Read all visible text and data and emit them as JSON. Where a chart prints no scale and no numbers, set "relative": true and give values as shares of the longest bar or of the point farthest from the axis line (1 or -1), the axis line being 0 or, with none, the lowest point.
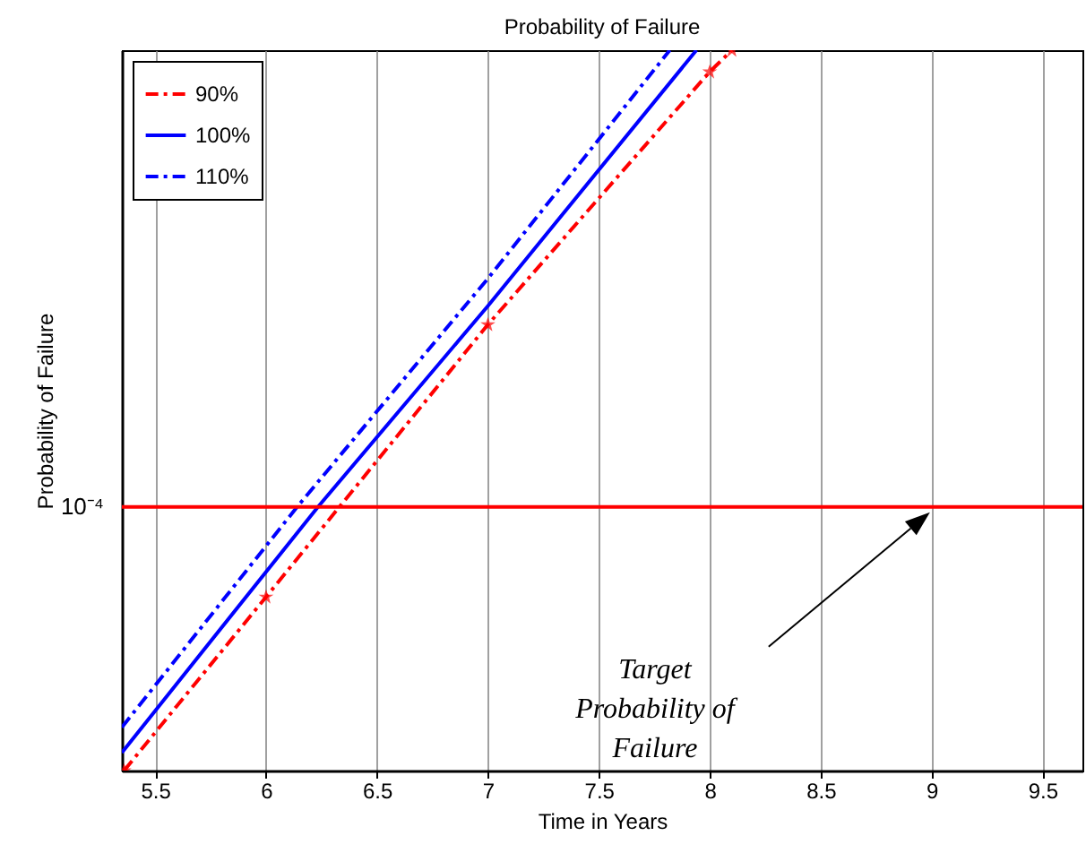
{
  "chart_data": {
    "type": "line",
    "title": "Probability of Failure",
    "xlabel": "Time in Years",
    "ylabel": "Probability of Failure",
    "relative": true,
    "grid": "x",
    "legend": "top left",
    "xlim": [
      5.35,
      9.68
    ],
    "xticks": [
      5.5,
      6,
      6.5,
      7,
      7.5,
      8,
      8.5,
      9,
      9.5
    ],
    "series": [
      {
        "name": "90%",
        "color": "#ff0000",
        "line_style": "dashdot",
        "marker": "star",
        "x": [
          5.36,
          6,
          7,
          8,
          8.1
        ],
        "values": [
          0,
          0.241,
          0.619,
          0.97,
          1
        ]
      },
      {
        "name": "100%",
        "color": "#0000ff",
        "line_style": "solid",
        "marker": "none",
        "x": [
          5.35,
          6.234,
          7,
          7.94
        ],
        "values": [
          0.025,
          0.366,
          0.645,
          1
        ]
      },
      {
        "name": "110%",
        "color": "#0000ff",
        "line_style": "dashdot",
        "marker": "none",
        "x": [
          5.35,
          6.14,
          7,
          7.82
        ],
        "values": [
          0.06,
          0.366,
          0.683,
          1
        ]
      }
    ],
    "ref_lines": [
      {
        "axis": "y",
        "value": 0.366,
        "label": "10⁻⁴",
        "color": "#ff0000",
        "line_style": "solid"
      }
    ],
    "annotations": [
      "Target\nProbability of\nFailure"
    ]
  }
}
